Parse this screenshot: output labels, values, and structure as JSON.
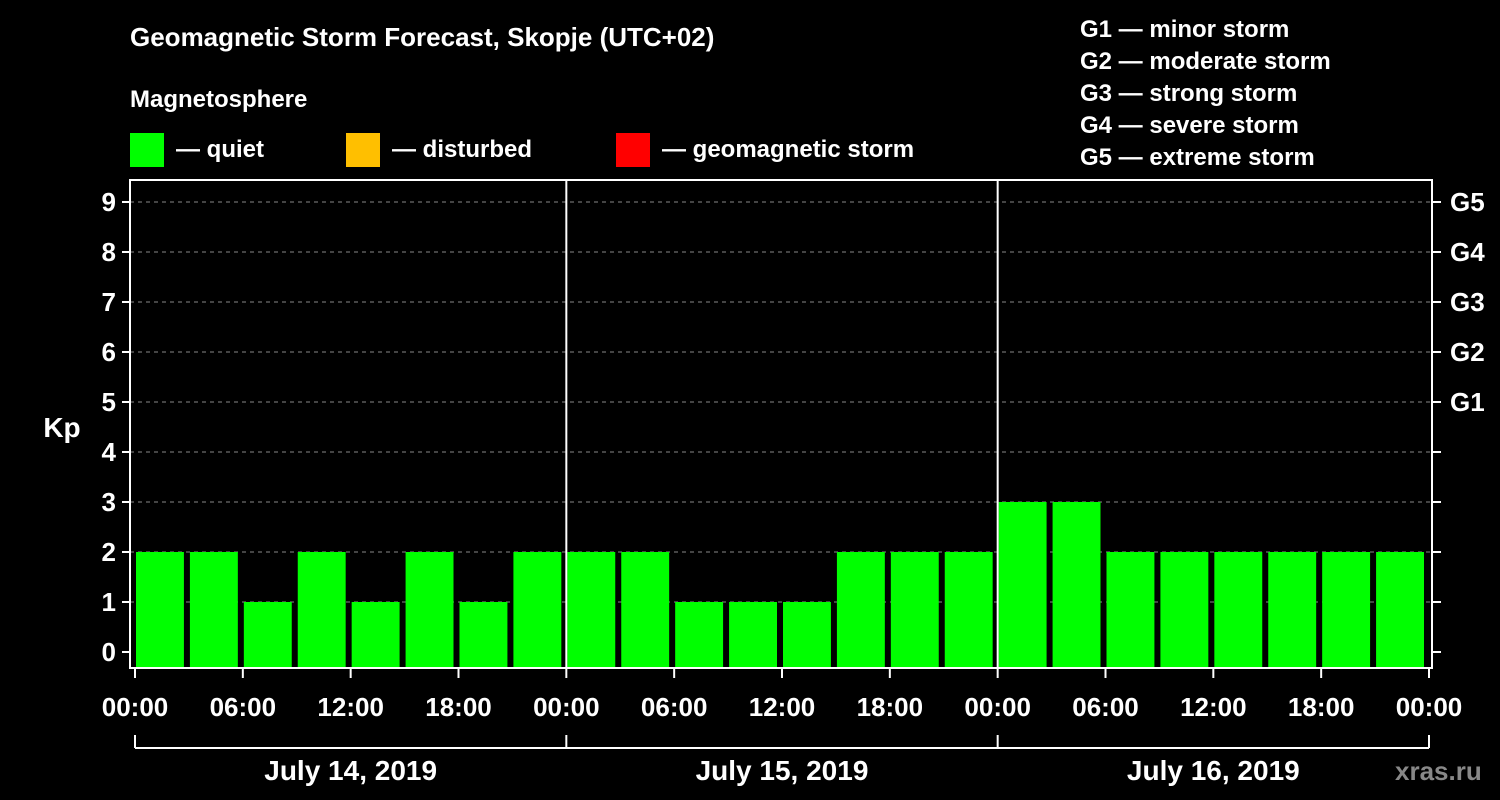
{
  "title": "Geomagnetic Storm Forecast, Skopje (UTC+02)",
  "subtitle": "Magnetosphere",
  "legend": [
    {
      "label": "— quiet",
      "color": "#00ff00"
    },
    {
      "label": "— disturbed",
      "color": "#ffbf00"
    },
    {
      "label": "— geomagnetic storm",
      "color": "#ff0000"
    }
  ],
  "g_scale_legend": [
    "G1 — minor storm",
    "G2 — moderate storm",
    "G3 — strong storm",
    "G4 — severe storm",
    "G5 — extreme storm"
  ],
  "watermark": "xras.ru",
  "chart_data": {
    "type": "bar",
    "title": "Geomagnetic Storm Forecast, Skopje (UTC+02)",
    "ylabel": "Kp",
    "ylim": [
      0,
      9
    ],
    "yticks": [
      "0",
      "1",
      "2",
      "3",
      "4",
      "5",
      "6",
      "7",
      "8",
      "9"
    ],
    "right_ticks": [
      {
        "kp": 5,
        "label": "G1"
      },
      {
        "kp": 6,
        "label": "G2"
      },
      {
        "kp": 7,
        "label": "G3"
      },
      {
        "kp": 8,
        "label": "G4"
      },
      {
        "kp": 9,
        "label": "G5"
      }
    ],
    "xtick_labels": [
      "00:00",
      "06:00",
      "12:00",
      "18:00",
      "00:00",
      "06:00",
      "12:00",
      "18:00",
      "00:00",
      "06:00",
      "12:00",
      "18:00",
      "00:00"
    ],
    "days": [
      "July 14, 2019",
      "July 15, 2019",
      "July 16, 2019"
    ],
    "bar_interval_hours": 3,
    "values": [
      2,
      2,
      1,
      2,
      1,
      2,
      1,
      2,
      2,
      2,
      1,
      1,
      1,
      2,
      2,
      2,
      3,
      3,
      2,
      2,
      2,
      2,
      2,
      2
    ],
    "color": "#00ff00",
    "grid": true
  }
}
